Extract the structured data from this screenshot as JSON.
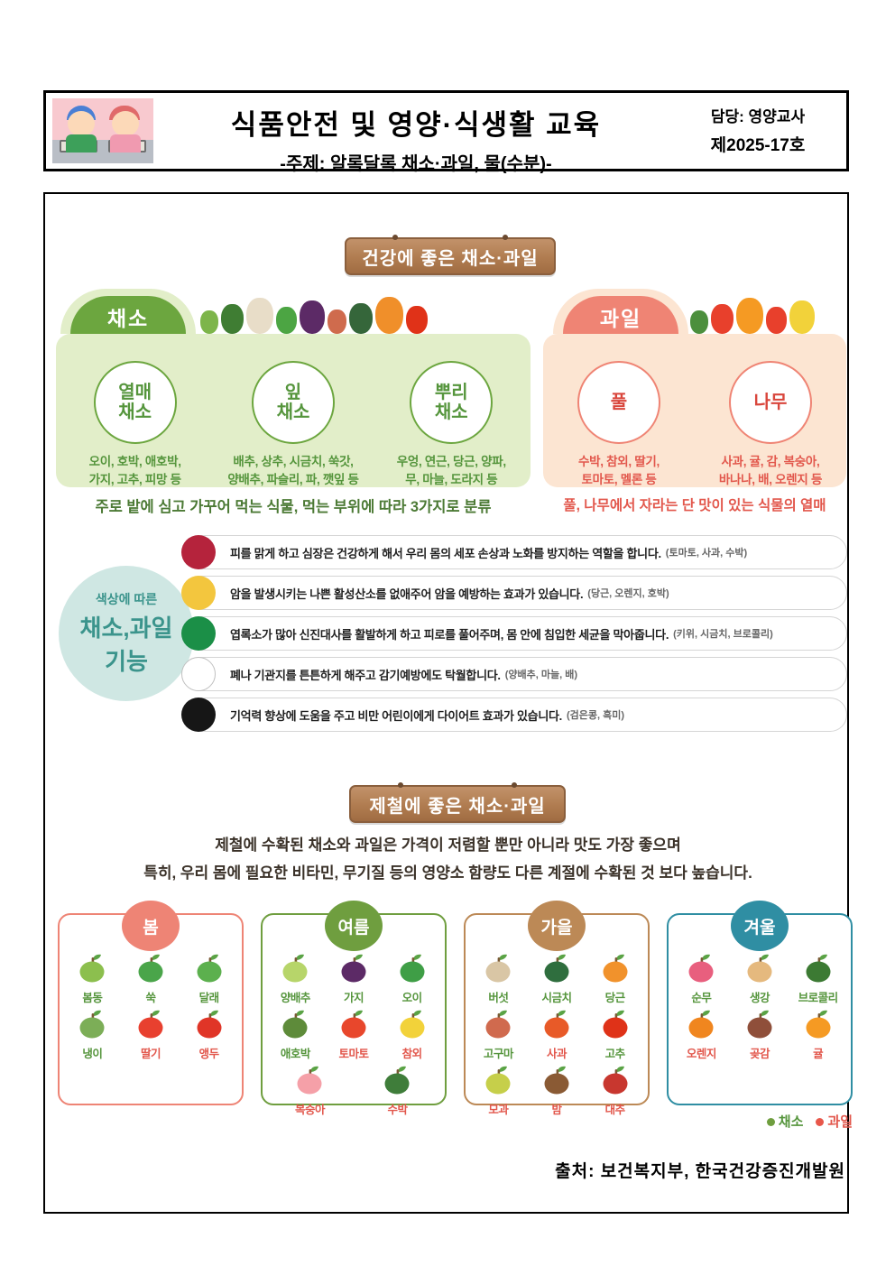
{
  "header": {
    "title": "식품안전 및 영양·식생활 교육",
    "subtitle": "-주제: 알록달록 채소·과일, 물(수분)-",
    "manager": "담당: 영양교사",
    "issue_no": "제2025-17호"
  },
  "healthy_section": {
    "sign": "건강에 좋은 채소·과일",
    "vegetables": {
      "label": "채소",
      "deco": [
        {
          "name": "cabbage",
          "color": "#7db54a"
        },
        {
          "name": "broccoli",
          "color": "#3f7d33"
        },
        {
          "name": "mushroom",
          "color": "#e8ddc8"
        },
        {
          "name": "scallion",
          "color": "#4ca543"
        },
        {
          "name": "eggplant",
          "color": "#5c2a66"
        },
        {
          "name": "sweet-potato",
          "color": "#cf6b4d"
        },
        {
          "name": "spinach",
          "color": "#35663a"
        },
        {
          "name": "carrot",
          "color": "#f08f2a"
        },
        {
          "name": "chili",
          "color": "#e03218"
        }
      ],
      "groups": [
        {
          "name": "열매\n채소",
          "items": "오이, 호박, 애호박,\n가지, 고추, 피망 등"
        },
        {
          "name": "잎\n채소",
          "items": "배추, 상추, 시금치, 쑥갓,\n양배추, 파슬리, 파, 깻잎 등"
        },
        {
          "name": "뿌리\n채소",
          "items": "우엉, 연근, 당근, 양파,\n무, 마늘, 도라지 등"
        }
      ],
      "caption": "주로 밭에 심고 가꾸어 먹는 식물, 먹는 부위에 따라 3가지로 분류"
    },
    "fruits": {
      "label": "과일",
      "deco": [
        {
          "name": "watermelon",
          "color": "#4c8f3d"
        },
        {
          "name": "apple",
          "color": "#e8402c"
        },
        {
          "name": "tangerine",
          "color": "#f59a23"
        },
        {
          "name": "strawberry",
          "color": "#e8402c"
        },
        {
          "name": "starfruit",
          "color": "#f2d23a"
        }
      ],
      "groups": [
        {
          "name": "풀",
          "items": "수박, 참외, 딸기,\n토마토, 멜론 등"
        },
        {
          "name": "나무",
          "items": "사과, 귤, 감, 복숭아,\n바나나, 배, 오렌지 등"
        }
      ],
      "caption": "풀, 나무에서 자라는 단 맛이 있는 식물의 열매"
    }
  },
  "color_functions": {
    "badge": {
      "line1": "색상에 따른",
      "line2": "채소,과일",
      "line3": "기능"
    },
    "rows": [
      {
        "name": "red",
        "color": "#b5233c",
        "text": "피를 맑게 하고 심장은 건강하게 해서 우리 몸의 세포 손상과 노화를 방지하는 역할을 합니다.",
        "examples": "(토마토, 사과, 수박)"
      },
      {
        "name": "yellow",
        "color": "#f3c63e",
        "text": "암을 발생시키는 나쁜 활성산소를 없애주어 암을 예방하는 효과가 있습니다.",
        "examples": "(당근, 오렌지, 호박)"
      },
      {
        "name": "green",
        "color": "#1b8f47",
        "text": "엽록소가 많아 신진대사를 활발하게 하고 피로를 풀어주며, 몸 안에 침입한 세균을 막아줍니다.",
        "examples": "(키위, 시금치, 브로콜리)"
      },
      {
        "name": "white",
        "color": "#ffffff",
        "text": "폐나 기관지를 튼튼하게 해주고 감기예방에도 탁월합니다.",
        "examples": "(양배추, 마늘, 배)"
      },
      {
        "name": "black",
        "color": "#161616",
        "text": "기억력 향상에 도움을 주고 비만 어린이에게 다이어트 효과가 있습니다.",
        "examples": "(검은콩, 흑미)"
      }
    ]
  },
  "seasonal_section": {
    "sign": "제철에 좋은 채소·과일",
    "description_line1": "제철에 수확된 채소와 과일은 가격이 저렴할 뿐만 아니라 맛도 가장 좋으며",
    "description_line2": "특히, 우리 몸에 필요한 비타민, 무기질 등의 영양소 함량도 다른 계절에 수확된 것 보다 높습니다.",
    "seasons": [
      {
        "name": "봄",
        "color": "#ee8475",
        "items": [
          {
            "label": "봄동",
            "type": "vegetable",
            "color": "#8cbf4e"
          },
          {
            "label": "쑥",
            "type": "vegetable",
            "color": "#4aa54a"
          },
          {
            "label": "달래",
            "type": "vegetable",
            "color": "#5cb04e"
          },
          {
            "label": "냉이",
            "type": "vegetable",
            "color": "#7cae57"
          },
          {
            "label": "딸기",
            "type": "fruit",
            "color": "#e8402f"
          },
          {
            "label": "앵두",
            "type": "fruit",
            "color": "#e03527"
          }
        ]
      },
      {
        "name": "여름",
        "color": "#6f9e3f",
        "items": [
          {
            "label": "양배추",
            "type": "vegetable",
            "color": "#b7d56a"
          },
          {
            "label": "가지",
            "type": "vegetable",
            "color": "#5c2a66"
          },
          {
            "label": "오이",
            "type": "vegetable",
            "color": "#3f9e46"
          },
          {
            "label": "애호박",
            "type": "vegetable",
            "color": "#5e8b3a"
          },
          {
            "label": "토마토",
            "type": "fruit",
            "color": "#e8472c"
          },
          {
            "label": "참외",
            "type": "fruit",
            "color": "#f2d23a"
          },
          {
            "label": "복숭아",
            "type": "fruit",
            "color": "#f5a0a8"
          },
          {
            "label": "수박",
            "type": "fruit",
            "color": "#3f7d3a"
          }
        ]
      },
      {
        "name": "가을",
        "color": "#bc8956",
        "items": [
          {
            "label": "버섯",
            "type": "vegetable",
            "color": "#d9c6a5"
          },
          {
            "label": "시금치",
            "type": "vegetable",
            "color": "#2f6e3e"
          },
          {
            "label": "당근",
            "type": "vegetable",
            "color": "#f1922c"
          },
          {
            "label": "고구마",
            "type": "vegetable",
            "color": "#d06a4e"
          },
          {
            "label": "사과",
            "type": "fruit",
            "color": "#e85a28"
          },
          {
            "label": "고추",
            "type": "vegetable",
            "color": "#df3218"
          },
          {
            "label": "모과",
            "type": "fruit",
            "color": "#c6cf4a"
          },
          {
            "label": "밤",
            "type": "fruit",
            "color": "#8a5a34"
          },
          {
            "label": "대추",
            "type": "fruit",
            "color": "#c8372f"
          }
        ]
      },
      {
        "name": "겨울",
        "color": "#2f8ea3",
        "items": [
          {
            "label": "순무",
            "type": "vegetable",
            "color": "#e85f7e"
          },
          {
            "label": "생강",
            "type": "vegetable",
            "color": "#e5b97e"
          },
          {
            "label": "브로콜리",
            "type": "vegetable",
            "color": "#3c7a33"
          },
          {
            "label": "오렌지",
            "type": "fruit",
            "color": "#f0861f"
          },
          {
            "label": "곶감",
            "type": "fruit",
            "color": "#8f4f3a"
          },
          {
            "label": "귤",
            "type": "fruit",
            "color": "#f59a23"
          }
        ]
      }
    ],
    "legend": [
      {
        "label": "채소",
        "dot_color": "#6f9e3f",
        "text_color": "#55953c"
      },
      {
        "label": "과일",
        "dot_color": "#e8574a",
        "text_color": "#e2574c"
      }
    ]
  },
  "footer": {
    "source": "출처: 보건복지부, 한국건강증진개발원"
  }
}
